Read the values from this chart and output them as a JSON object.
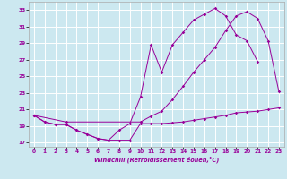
{
  "xlabel": "Windchill (Refroidissement éolien,°C)",
  "bg_color": "#cce8f0",
  "grid_color": "#ffffff",
  "line_color": "#990099",
  "xlim": [
    -0.5,
    23.5
  ],
  "ylim": [
    16.5,
    34.0
  ],
  "yticks": [
    17,
    19,
    21,
    23,
    25,
    27,
    29,
    31,
    33
  ],
  "xticks": [
    0,
    1,
    2,
    3,
    4,
    5,
    6,
    7,
    8,
    9,
    10,
    11,
    12,
    13,
    14,
    15,
    16,
    17,
    18,
    19,
    20,
    21,
    22,
    23
  ],
  "line1_x": [
    0,
    1,
    2,
    3,
    4,
    5,
    6,
    7,
    8,
    9,
    10,
    11,
    12,
    13,
    14,
    15,
    16,
    17,
    18,
    19,
    20,
    21,
    22,
    23
  ],
  "line1_y": [
    20.3,
    19.5,
    19.2,
    19.2,
    18.5,
    18.0,
    17.5,
    17.3,
    17.3,
    17.3,
    19.3,
    19.3,
    19.3,
    19.4,
    19.5,
    19.7,
    19.9,
    20.1,
    20.3,
    20.6,
    20.7,
    20.8,
    21.0,
    21.2
  ],
  "line2_x": [
    0,
    1,
    2,
    3,
    4,
    5,
    6,
    7,
    8,
    9,
    10,
    11,
    12,
    13,
    14,
    15,
    16,
    17,
    18,
    19,
    20,
    21
  ],
  "line2_y": [
    20.3,
    19.5,
    19.2,
    19.2,
    18.5,
    18.0,
    17.5,
    17.3,
    18.5,
    19.3,
    22.5,
    28.8,
    25.5,
    28.8,
    30.3,
    31.8,
    32.5,
    33.2,
    32.3,
    30.0,
    29.3,
    26.8
  ],
  "line3_x": [
    0,
    3,
    10,
    11,
    12,
    13,
    14,
    15,
    16,
    17,
    18,
    19,
    20,
    21,
    22,
    23
  ],
  "line3_y": [
    20.3,
    19.5,
    19.5,
    20.2,
    20.8,
    22.2,
    23.8,
    25.5,
    27.0,
    28.5,
    30.5,
    32.3,
    32.8,
    32.0,
    29.3,
    23.2
  ]
}
